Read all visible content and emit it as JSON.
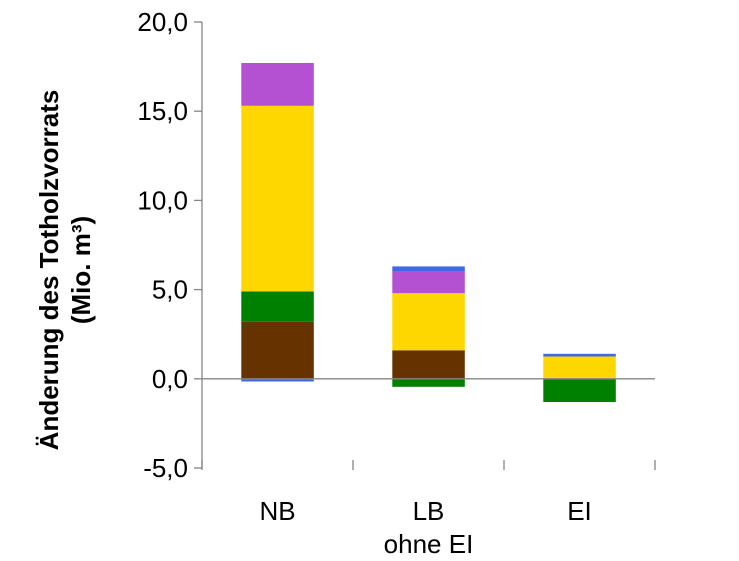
{
  "chart_data": {
    "type": "bar",
    "stacked": true,
    "categories": [
      "NB",
      "LB",
      "EI"
    ],
    "category_sublabels": [
      "",
      "ohne EI",
      ""
    ],
    "ylabel_lines": [
      "Änderung des Totholzvorrats",
      "(Mio. m³)"
    ],
    "ylim": [
      -5,
      20
    ],
    "yticks": [
      "20,0",
      "15,0",
      "10,0",
      "5,0",
      "0,0",
      "-5,0"
    ],
    "ytick_values": [
      20,
      15,
      10,
      5,
      0,
      -5
    ],
    "grid": false,
    "legend": "none",
    "series": [
      {
        "color": "#4169e1",
        "values": [
          -0.15,
          0.0,
          0.0
        ]
      },
      {
        "color": "#663300",
        "values": [
          3.2,
          1.6,
          0.0
        ]
      },
      {
        "color": "#008000",
        "values": [
          1.7,
          -0.45,
          -1.3
        ]
      },
      {
        "color": "#ffd700",
        "values": [
          10.4,
          3.2,
          1.25
        ]
      },
      {
        "color": "#b450d2",
        "values": [
          2.4,
          1.2,
          0.0
        ]
      },
      {
        "color": "#4169e1",
        "values": [
          0.0,
          0.3,
          0.15
        ]
      }
    ]
  }
}
